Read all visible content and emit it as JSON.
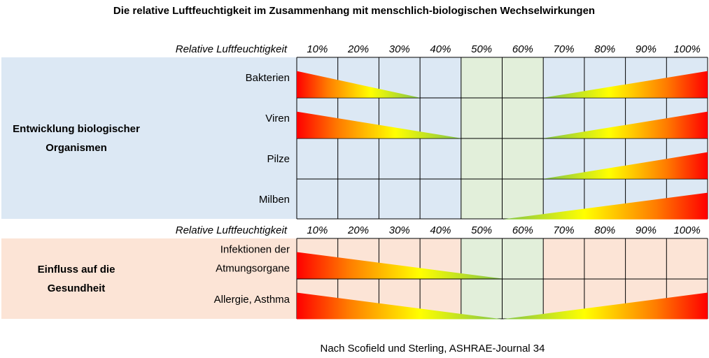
{
  "chart_data": {
    "type": "table",
    "title": "Die relative Luftfeuchtigkeit im Zusammenhang mit menschlich-biologischen Wechselwirkungen",
    "axis_label": "Relative Luftfeuchtigkeit",
    "columns": [
      "10%",
      "20%",
      "30%",
      "40%",
      "50%",
      "60%",
      "70%",
      "80%",
      "90%",
      "100%"
    ],
    "optimal_range": [
      50,
      60
    ],
    "groups": [
      {
        "name": "Entwicklung biologischer Organismen",
        "name_lines": [
          "Entwicklung biologischer",
          "Organismen"
        ],
        "color": "#dce8f4",
        "rows": [
          {
            "label_lines": [
              "Bakterien"
            ],
            "left_end": 30,
            "right_start": 60
          },
          {
            "label_lines": [
              "Viren"
            ],
            "left_end": 40,
            "right_start": 60
          },
          {
            "label_lines": [
              "Pilze"
            ],
            "left_end": null,
            "right_start": 60
          },
          {
            "label_lines": [
              "Milben"
            ],
            "left_end": null,
            "right_start": 50
          }
        ]
      },
      {
        "name": "Einfluss auf die Gesundheit",
        "name_lines": [
          "Einfluss auf die",
          "Gesundheit"
        ],
        "color": "#fce4d6",
        "rows": [
          {
            "label_lines": [
              "Infektionen der",
              "Atmungsorgane"
            ],
            "left_end": 50,
            "right_start": null
          },
          {
            "label_lines": [
              "Allergie, Asthma"
            ],
            "left_end": 50,
            "right_start": 50
          }
        ]
      }
    ],
    "source": "Nach Scofield und Sterling, ASHRAE-Journal 34",
    "colors": {
      "optimal": "#e2efda",
      "grid": "#000000",
      "gradient_high": "#ff0000",
      "gradient_mid1": "#ff7b00",
      "gradient_mid2": "#ffff00",
      "gradient_low": "#7fc34a"
    }
  }
}
